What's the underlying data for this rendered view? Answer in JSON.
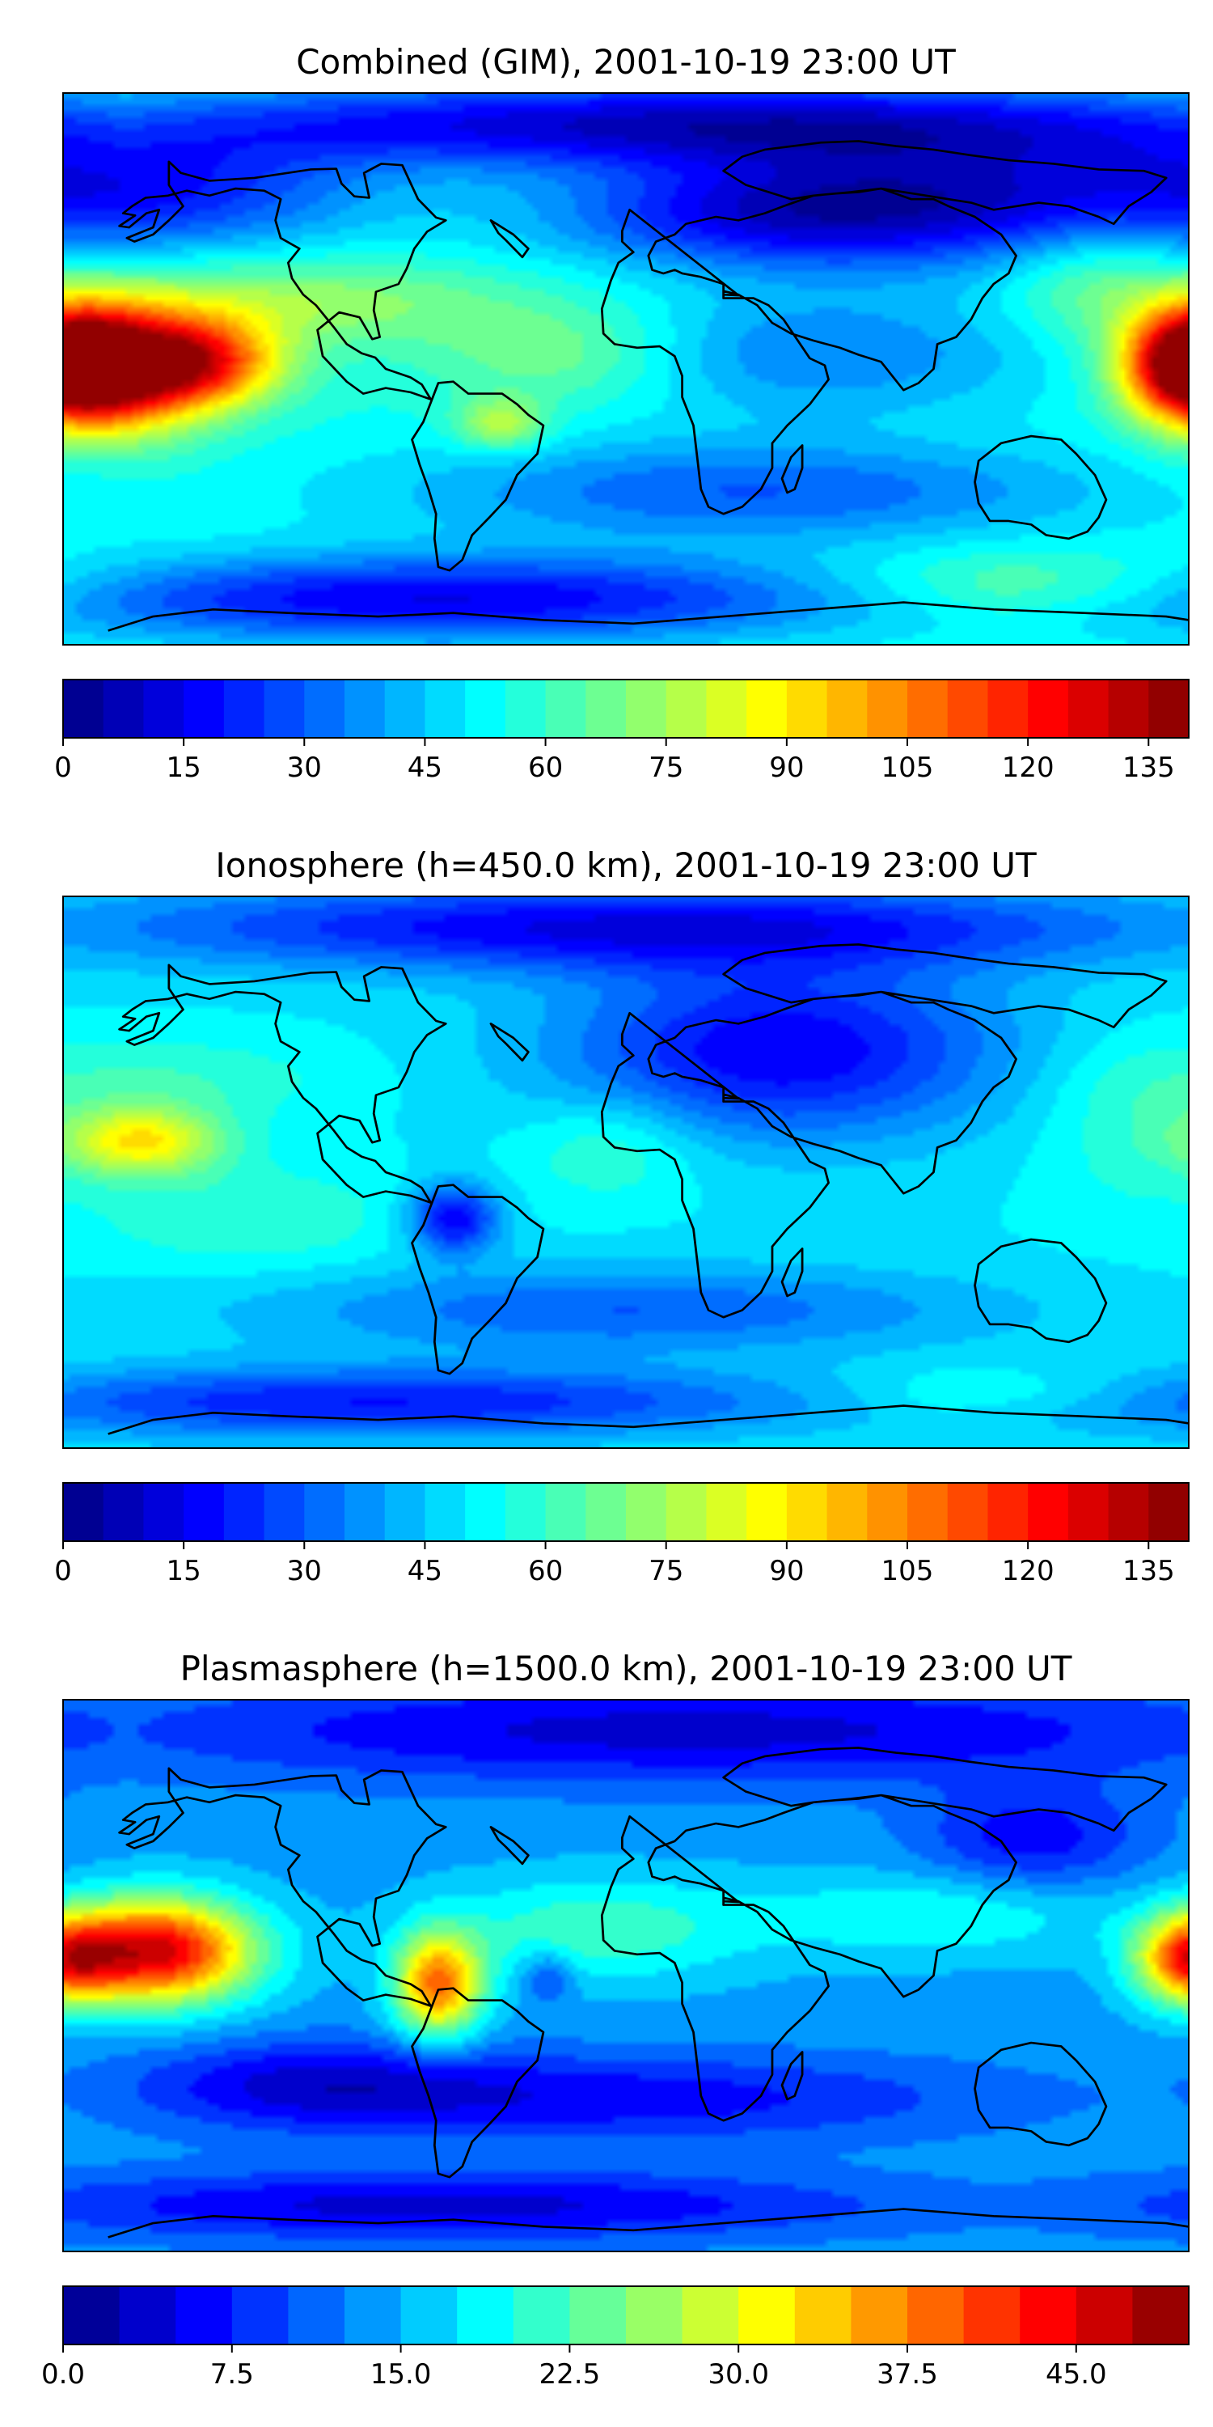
{
  "colormap": "jet",
  "land_outline_color": "#000000",
  "panels": [
    {
      "title": "Combined (GIM), 2001-10-19 23:00 UT",
      "colorbar": {
        "range": [
          0,
          140
        ],
        "levels": 28,
        "ticks": [
          "0",
          "15",
          "30",
          "45",
          "60",
          "75",
          "90",
          "105",
          "120",
          "135"
        ],
        "tick_values": [
          0,
          15,
          30,
          45,
          60,
          75,
          90,
          105,
          120,
          135
        ]
      },
      "field": {
        "background": 55,
        "features": [
          {
            "desc": "N Pacific trough",
            "lon": -150,
            "lat": 58,
            "amp": -30,
            "sx": 50,
            "sy": 14
          },
          {
            "desc": "Arctic low",
            "lon": 20,
            "lat": 80,
            "amp": -45,
            "sx": 130,
            "sy": 10
          },
          {
            "desc": "Siberia low",
            "lon": 100,
            "lat": 55,
            "amp": -35,
            "sx": 60,
            "sy": 15
          },
          {
            "desc": "Eurasia low",
            "lon": 40,
            "lat": 50,
            "amp": -25,
            "sx": 50,
            "sy": 12
          },
          {
            "desc": "Africa/Asia low",
            "lon": 60,
            "lat": 5,
            "amp": -20,
            "sx": 55,
            "sy": 15
          },
          {
            "desc": "Pacific crest",
            "lon": -165,
            "lat": 0,
            "amp": 80,
            "sx": 20,
            "sy": 14
          },
          {
            "desc": "Pacific crest east",
            "lon": -135,
            "lat": 2,
            "amp": 55,
            "sx": 18,
            "sy": 10
          },
          {
            "desc": "Date line crest",
            "lon": 180,
            "lat": 2,
            "amp": 65,
            "sx": 14,
            "sy": 12
          },
          {
            "desc": "N tropical band",
            "lon": -110,
            "lat": 22,
            "amp": 20,
            "sx": 50,
            "sy": 10
          },
          {
            "desc": "Atlantic band",
            "lon": -20,
            "lat": 5,
            "amp": 18,
            "sx": 30,
            "sy": 12
          },
          {
            "desc": "Brazil crest",
            "lon": -40,
            "lat": -18,
            "amp": 25,
            "sx": 10,
            "sy": 6
          },
          {
            "desc": "Southern low",
            "lon": 40,
            "lat": -40,
            "amp": -25,
            "sx": 80,
            "sy": 12
          },
          {
            "desc": "Antarctic low",
            "lon": -60,
            "lat": -75,
            "amp": -40,
            "sx": 100,
            "sy": 10
          },
          {
            "desc": "S Indian high",
            "lon": 130,
            "lat": -70,
            "amp": 15,
            "sx": 45,
            "sy": 8
          },
          {
            "desc": "W Pacific high",
            "lon": 150,
            "lat": 30,
            "amp": 15,
            "sx": 20,
            "sy": 15
          }
        ]
      }
    },
    {
      "title": "Ionosphere  (h=450.0 km), 2001-10-19 23:00 UT",
      "colorbar": {
        "range": [
          0,
          140
        ],
        "levels": 28,
        "ticks": [
          "0",
          "15",
          "30",
          "45",
          "60",
          "75",
          "90",
          "105",
          "120",
          "135"
        ],
        "tick_values": [
          0,
          15,
          30,
          45,
          60,
          75,
          90,
          105,
          120,
          135
        ]
      },
      "field": {
        "background": 50,
        "features": [
          {
            "desc": "Eurasia low",
            "lon": 50,
            "lat": 40,
            "amp": -35,
            "sx": 50,
            "sy": 20
          },
          {
            "desc": "Arctic low",
            "lon": 0,
            "lat": 80,
            "amp": -35,
            "sx": 120,
            "sy": 10
          },
          {
            "desc": "Brazil low",
            "lon": -55,
            "lat": -15,
            "amp": -35,
            "sx": 10,
            "sy": 8
          },
          {
            "desc": "Pacific crest",
            "lon": -155,
            "lat": 10,
            "amp": 40,
            "sx": 18,
            "sy": 8
          },
          {
            "desc": "N Pacific band",
            "lon": -150,
            "lat": 30,
            "amp": 10,
            "sx": 40,
            "sy": 10
          },
          {
            "desc": "S Pacific band",
            "lon": -120,
            "lat": -15,
            "amp": 10,
            "sx": 35,
            "sy": 12
          },
          {
            "desc": "Atlantic/Africa crest",
            "lon": -5,
            "lat": 8,
            "amp": 12,
            "sx": 20,
            "sy": 12
          },
          {
            "desc": "W Pacific band",
            "lon": 160,
            "lat": 15,
            "amp": 8,
            "sx": 20,
            "sy": 20
          },
          {
            "desc": "Southern low",
            "lon": 0,
            "lat": -45,
            "amp": -20,
            "sx": 80,
            "sy": 10
          },
          {
            "desc": "Antarctic low",
            "lon": -80,
            "lat": -75,
            "amp": -30,
            "sx": 100,
            "sy": 8
          },
          {
            "desc": "S Indian high",
            "lon": 120,
            "lat": -72,
            "amp": 10,
            "sx": 35,
            "sy": 6
          }
        ]
      }
    },
    {
      "title": "Plasmasphere (h=1500.0 km), 2001-10-19 23:00 UT",
      "colorbar": {
        "range": [
          0,
          50
        ],
        "levels": 20,
        "ticks": [
          "0.0",
          "7.5",
          "15.0",
          "22.5",
          "30.0",
          "37.5",
          "45.0"
        ],
        "tick_values": [
          0,
          7.5,
          15,
          22.5,
          30,
          37.5,
          45
        ]
      },
      "field": {
        "background": 14,
        "features": [
          {
            "desc": "Arctic low",
            "lon": 20,
            "lat": 80,
            "amp": -10,
            "sx": 130,
            "sy": 12
          },
          {
            "desc": "Pacific crest",
            "lon": -150,
            "lat": 8,
            "amp": 32,
            "sx": 22,
            "sy": 12
          },
          {
            "desc": "S America crest",
            "lon": -60,
            "lat": -3,
            "amp": 24,
            "sx": 10,
            "sy": 12
          },
          {
            "desc": "Atlantic band",
            "lon": -10,
            "lat": 15,
            "amp": 8,
            "sx": 35,
            "sy": 12
          },
          {
            "desc": "Mid-Atlantic low",
            "lon": -25,
            "lat": 0,
            "amp": -6,
            "sx": 6,
            "sy": 6
          },
          {
            "desc": "Date line crest",
            "lon": 180,
            "lat": 5,
            "amp": 20,
            "sx": 12,
            "sy": 10
          },
          {
            "desc": "Asia band",
            "lon": 100,
            "lat": 20,
            "amp": 6,
            "sx": 40,
            "sy": 10
          },
          {
            "desc": "E Asia low",
            "lon": 130,
            "lat": 45,
            "amp": -8,
            "sx": 25,
            "sy": 12
          },
          {
            "desc": "Southern low",
            "lon": 0,
            "lat": -40,
            "amp": -8,
            "sx": 80,
            "sy": 10
          },
          {
            "desc": "SE Pacific low",
            "lon": -100,
            "lat": -35,
            "amp": -8,
            "sx": 40,
            "sy": 10
          },
          {
            "desc": "Antarctic low",
            "lon": -60,
            "lat": -75,
            "amp": -10,
            "sx": 100,
            "sy": 8
          }
        ]
      }
    }
  ]
}
